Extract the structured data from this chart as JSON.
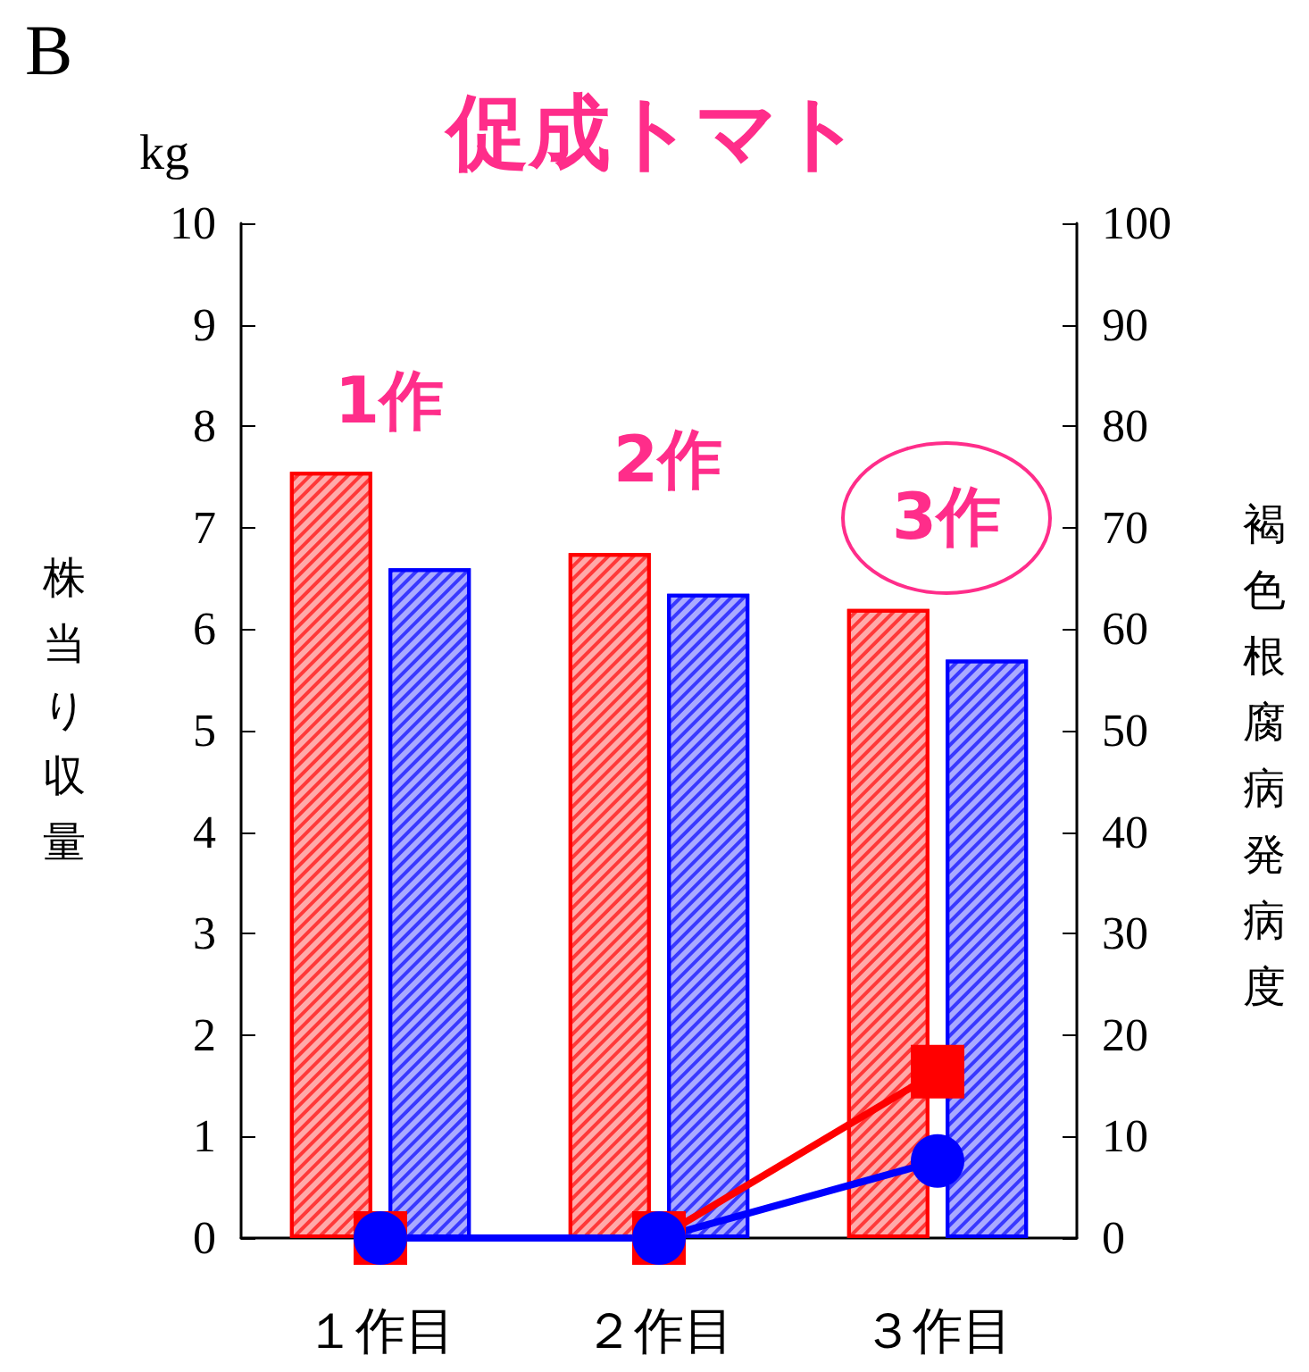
{
  "chart_data": {
    "type": "bar",
    "title": "促成トマト",
    "ylabel": "株当り収量",
    "y2label": "褐色根腐病発病度",
    "annotations": [
      "B",
      "kg",
      "1作",
      "2作",
      "3作"
    ],
    "categories": [
      "１作目",
      "２作目",
      "３作目"
    ],
    "series": [
      {
        "color": "#ff0000",
        "values": [
          7.55,
          6.75,
          6.2
        ]
      },
      {
        "color": "#0000ff",
        "values": [
          6.6,
          6.35,
          5.7
        ]
      },
      {
        "type": "line",
        "axis": "y2",
        "color": "#ff0000",
        "marker": "square",
        "values": [
          0,
          0,
          16.4
        ]
      },
      {
        "type": "line",
        "axis": "y2",
        "color": "#0000ff",
        "marker": "circle",
        "values": [
          0,
          0,
          7.6
        ]
      }
    ],
    "ylim": [
      0,
      10
    ],
    "yticks": [
      0,
      1,
      2,
      3,
      4,
      5,
      6,
      7,
      8,
      9,
      10
    ],
    "y2lim": [
      0,
      100
    ],
    "y2ticks": [
      0,
      10,
      20,
      30,
      40,
      50,
      60,
      70,
      80,
      90,
      100
    ],
    "grid": false
  }
}
